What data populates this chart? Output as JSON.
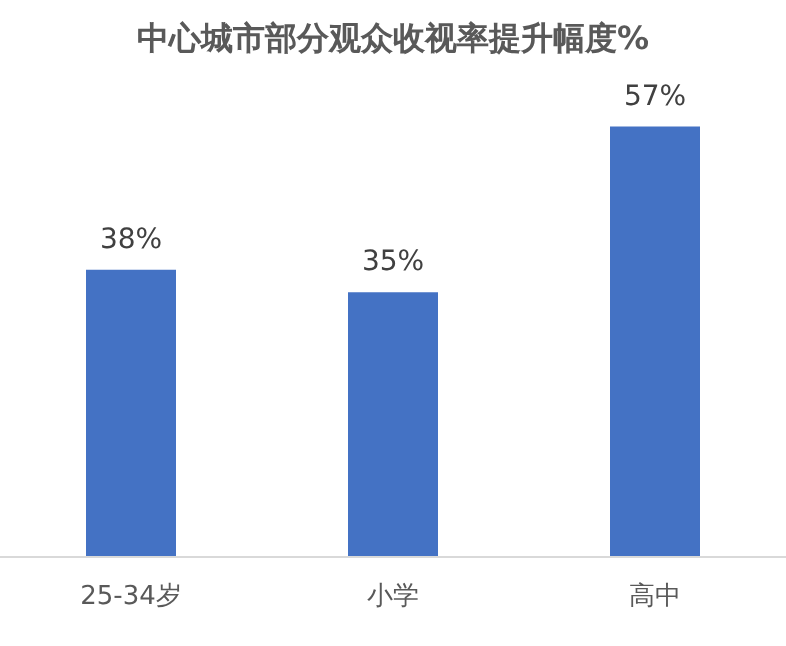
{
  "chart_data": {
    "type": "bar",
    "title": "中心城市部分观众收视率提升幅度%",
    "categories": [
      "25-34岁",
      "小学",
      "高中"
    ],
    "values": [
      38,
      35,
      57
    ],
    "value_labels": [
      "38%",
      "35%",
      "57%"
    ],
    "color": "#4472c4"
  }
}
